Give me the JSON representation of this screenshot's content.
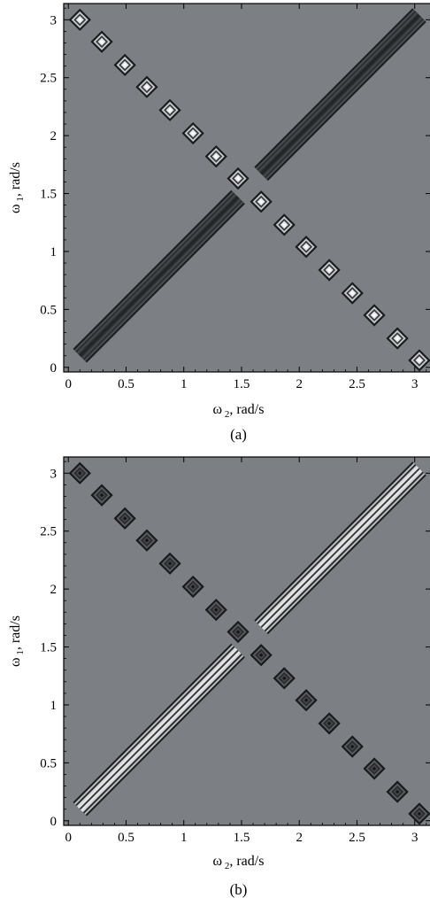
{
  "chart_data": [
    {
      "type": "heatmap",
      "subtype": "contour",
      "panel_label": "(a)",
      "xlabel_symbol": "ω",
      "xlabel_sub": "2",
      "xlabel_unit": ", rad/s",
      "ylabel_symbol": "ω",
      "ylabel_sub": "1",
      "ylabel_unit": ", rad/s",
      "xlim": [
        -0.04,
        3.14
      ],
      "ylim": [
        -0.04,
        3.14
      ],
      "x_ticks": [
        "0",
        "0.5",
        "1",
        "1.5",
        "2",
        "2.5",
        "3"
      ],
      "x_tick_values": [
        0,
        0.5,
        1,
        1.5,
        2,
        2.5,
        3
      ],
      "y_ticks": [
        "0",
        "0.5",
        "1",
        "1.5",
        "2",
        "2.5",
        "3"
      ],
      "y_tick_values": [
        0,
        0.5,
        1,
        1.5,
        2,
        2.5,
        3
      ],
      "background_color": "#7c8084",
      "diagonal_color": "#2f3236",
      "diagonal_x_range": [
        0.1,
        3.04
      ],
      "gap_x_range": [
        1.47,
        1.67
      ],
      "antidiagonal_style": "light",
      "antidiagonal_centers": [
        0.1,
        0.29,
        0.49,
        0.68,
        0.88,
        1.08,
        1.28,
        1.47,
        1.67,
        1.87,
        2.06,
        2.26,
        2.46,
        2.65,
        2.85,
        3.04
      ]
    },
    {
      "type": "heatmap",
      "subtype": "contour",
      "panel_label": "(b)",
      "xlabel_symbol": "ω",
      "xlabel_sub": "2",
      "xlabel_unit": ", rad/s",
      "ylabel_symbol": "ω",
      "ylabel_sub": "1",
      "ylabel_unit": ", rad/s",
      "xlim": [
        -0.04,
        3.14
      ],
      "ylim": [
        -0.04,
        3.14
      ],
      "x_ticks": [
        "0",
        "0.5",
        "1",
        "1.5",
        "2",
        "2.5",
        "3"
      ],
      "x_tick_values": [
        0,
        0.5,
        1,
        1.5,
        2,
        2.5,
        3
      ],
      "y_ticks": [
        "0",
        "0.5",
        "1",
        "1.5",
        "2",
        "2.5",
        "3"
      ],
      "y_tick_values": [
        0,
        0.5,
        1,
        1.5,
        2,
        2.5,
        3
      ],
      "background_color": "#7c8084",
      "diagonal_color": "#d0d3d6",
      "diagonal_x_range": [
        0.1,
        3.04
      ],
      "gap_x_range": [
        1.47,
        1.67
      ],
      "antidiagonal_style": "dark",
      "antidiagonal_centers": [
        0.1,
        0.29,
        0.49,
        0.68,
        0.88,
        1.08,
        1.28,
        1.47,
        1.67,
        1.87,
        2.06,
        2.26,
        2.46,
        2.65,
        2.85,
        3.04
      ]
    }
  ]
}
